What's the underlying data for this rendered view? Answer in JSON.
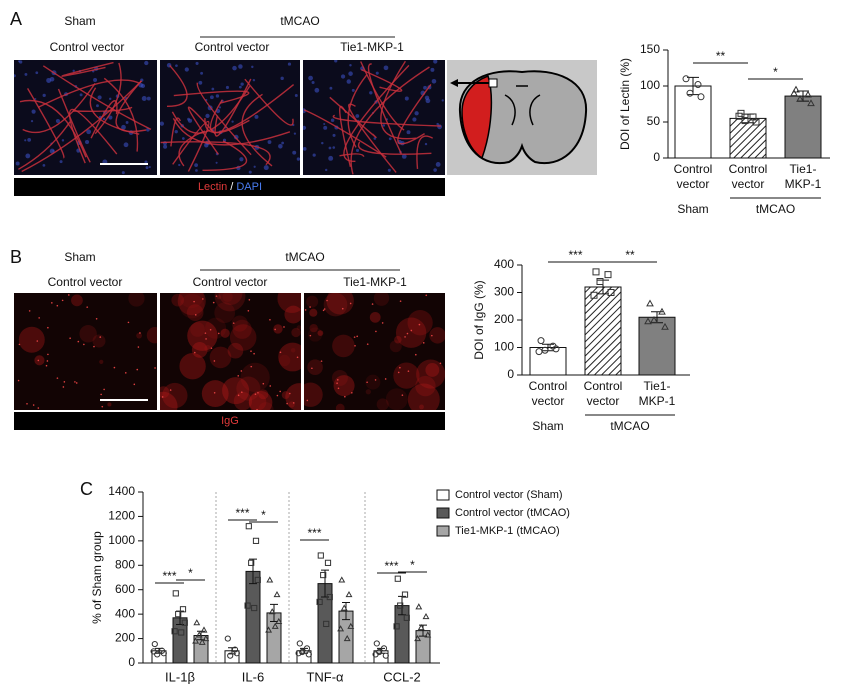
{
  "panels": [
    {
      "label": "A",
      "sham": "Sham",
      "tmcao": "tMCAO",
      "image_titles": [
        "Control vector",
        "Control vector",
        "Tie1-MKP-1"
      ],
      "stain": [
        "Lectin",
        "/",
        "DAPI"
      ]
    },
    {
      "label": "B",
      "sham": "Sham",
      "tmcao": "tMCAO",
      "image_titles": [
        "Control vector",
        "Control vector",
        "Tie1-MKP-1"
      ],
      "stain": [
        "IgG"
      ]
    },
    {
      "label": "C"
    }
  ],
  "chart_data": [
    {
      "type": "bar",
      "y_label": "DOI of Lectin (%)",
      "categories": [
        [
          "Control",
          "vector"
        ],
        [
          "Control",
          "vector"
        ],
        [
          "Tie1-",
          "MKP-1"
        ]
      ],
      "values": [
        100,
        55,
        86
      ],
      "errors": [
        12,
        6,
        7
      ],
      "points": [
        [
          110,
          102,
          90,
          85
        ],
        [
          62,
          57,
          52,
          50,
          58
        ],
        [
          95,
          88,
          82,
          76,
          90
        ]
      ],
      "fills": [
        "#ffffff",
        "hatch",
        "#808080"
      ],
      "markers": [
        "circle",
        "square",
        "triangle"
      ],
      "groups": [
        {
          "label": "Sham",
          "categories": [
            0
          ]
        },
        {
          "label": "tMCAO",
          "categories": [
            1,
            2
          ]
        }
      ],
      "significance": [
        {
          "pair": [
            0,
            1
          ],
          "label": "**"
        },
        {
          "pair": [
            1,
            2
          ],
          "label": "*"
        }
      ],
      "ylim": [
        0,
        150
      ],
      "yticks": [
        0,
        50,
        100,
        150
      ]
    },
    {
      "type": "bar",
      "y_label": "DOI of IgG (%)",
      "categories": [
        [
          "Control",
          "vector"
        ],
        [
          "Control",
          "vector"
        ],
        [
          "Tie1-",
          "MKP-1"
        ]
      ],
      "values": [
        100,
        320,
        210
      ],
      "errors": [
        12,
        25,
        20
      ],
      "points": [
        [
          125,
          105,
          90,
          95,
          85
        ],
        [
          375,
          365,
          340,
          300,
          290
        ],
        [
          260,
          230,
          200,
          175,
          195
        ]
      ],
      "fills": [
        "#ffffff",
        "hatch",
        "#808080"
      ],
      "markers": [
        "circle",
        "square",
        "triangle"
      ],
      "groups": [
        {
          "label": "Sham",
          "categories": [
            0
          ]
        },
        {
          "label": "tMCAO",
          "categories": [
            1,
            2
          ]
        }
      ],
      "significance": [
        {
          "pair": [
            0,
            1
          ],
          "label": "***"
        },
        {
          "pair": [
            1,
            2
          ],
          "label": "**"
        }
      ],
      "ylim": [
        0,
        400
      ],
      "yticks": [
        0,
        100,
        200,
        300,
        400
      ]
    },
    {
      "type": "grouped_bar",
      "y_label": "% of Sham group",
      "categories": [
        "IL-1β",
        "IL-6",
        "TNF-α",
        "CCL-2"
      ],
      "series": [
        {
          "name": "Control vector (Sham)",
          "color": "#ffffff",
          "marker": "circle",
          "values": [
            100,
            100,
            100,
            100
          ],
          "errors": [
            20,
            25,
            20,
            20
          ],
          "points": [
            [
              155,
              100,
              70,
              80,
              95
            ],
            [
              200,
              110,
              60,
              80
            ],
            [
              160,
              120,
              90,
              70,
              80
            ],
            [
              160,
              120,
              90,
              60,
              70
            ]
          ]
        },
        {
          "name": "Control vector (tMCAO)",
          "color": "#595959",
          "marker": "square",
          "values": [
            370,
            750,
            650,
            470
          ],
          "errors": [
            55,
            100,
            110,
            75
          ],
          "points": [
            [
              570,
              440,
              400,
              330,
              260,
              250
            ],
            [
              1120,
              1000,
              820,
              680,
              470,
              450
            ],
            [
              880,
              820,
              720,
              540,
              500,
              320
            ],
            [
              690,
              560,
              470,
              370,
              300
            ]
          ]
        },
        {
          "name": "Tie1-MKP-1 (tMCAO)",
          "color": "#a6a6a6",
          "marker": "triangle",
          "values": [
            225,
            410,
            425,
            265
          ],
          "errors": [
            35,
            70,
            70,
            45
          ],
          "points": [
            [
              330,
              270,
              230,
              200,
              180,
              170
            ],
            [
              680,
              560,
              420,
              340,
              270,
              300
            ],
            [
              680,
              560,
              450,
              300,
              280,
              200
            ],
            [
              460,
              380,
              290,
              230,
              200
            ]
          ]
        }
      ],
      "significance": [
        {
          "category": 0,
          "pair": [
            0,
            1
          ],
          "label": "***"
        },
        {
          "category": 0,
          "pair": [
            1,
            2
          ],
          "label": "*"
        },
        {
          "category": 1,
          "pair": [
            0,
            1
          ],
          "label": "***"
        },
        {
          "category": 1,
          "pair": [
            1,
            2
          ],
          "label": "*"
        },
        {
          "category": 2,
          "pair": [
            0,
            1
          ],
          "label": "***"
        },
        {
          "category": 3,
          "pair": [
            0,
            1
          ],
          "label": "***"
        },
        {
          "category": 3,
          "pair": [
            1,
            2
          ],
          "label": "*"
        }
      ],
      "ylim": [
        0,
        1400
      ],
      "yticks": [
        0,
        200,
        400,
        600,
        800,
        1000,
        1200,
        1400
      ]
    }
  ]
}
